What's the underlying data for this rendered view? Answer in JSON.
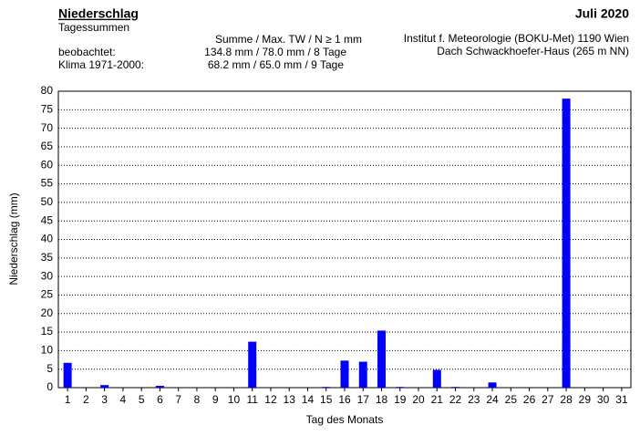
{
  "chart_data": {
    "type": "bar",
    "title": "Niederschlag",
    "subtitle": "Tagessummen",
    "period": "Juli 2020",
    "annotations": [
      "Summe  /   Max. TW /   N ≥ 1 mm",
      "beobachtet:",
      "134.8 mm /   78.0 mm /   8 Tage",
      "Klima 1971-2000:",
      "68.2 mm /   65.0 mm /   9 Tage",
      "Institut f. Meteorologie (BOKU-Met) 1190 Wien",
      "Dach Schwackhoefer-Haus (265 m NN)"
    ],
    "x_label": "Tag des Monats",
    "y_label": "Niederschlag (mm)",
    "categories": [
      "1",
      "2",
      "3",
      "4",
      "5",
      "6",
      "7",
      "8",
      "9",
      "10",
      "11",
      "12",
      "13",
      "14",
      "15",
      "16",
      "17",
      "18",
      "19",
      "20",
      "21",
      "22",
      "23",
      "24",
      "25",
      "26",
      "27",
      "28",
      "29",
      "30",
      "31"
    ],
    "values": [
      6.7,
      0,
      0.7,
      0,
      0,
      0.5,
      0,
      0,
      0,
      0,
      12.4,
      0,
      0,
      0,
      0.2,
      7.3,
      7.0,
      15.4,
      0.2,
      0,
      4.8,
      0.2,
      0,
      1.4,
      0,
      0,
      0,
      78.0,
      0,
      0,
      0
    ],
    "color": "#0000ff",
    "ylim": [
      0,
      80
    ],
    "yticks": [
      0,
      5,
      10,
      15,
      20,
      25,
      30,
      35,
      40,
      45,
      50,
      55,
      60,
      65,
      70,
      75,
      80
    ],
    "grid": true
  }
}
